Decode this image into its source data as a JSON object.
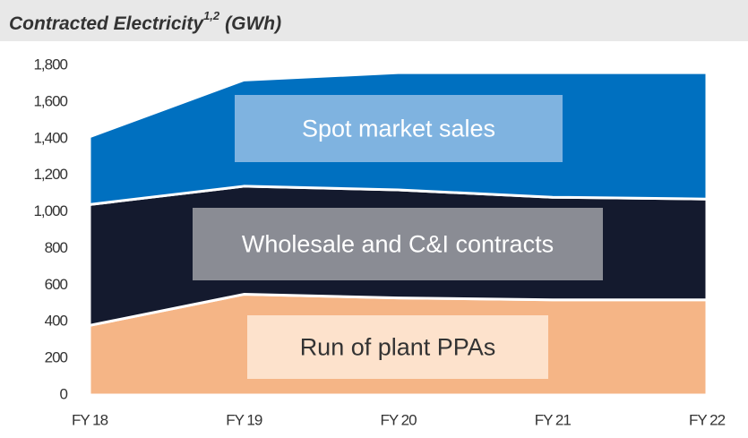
{
  "chart_data": {
    "type": "stacked_area",
    "title": "Contracted Electricity",
    "title_superscript": "1,2",
    "title_suffix": "(GWh)",
    "categories": [
      "FY 18",
      "FY 19",
      "FY 20",
      "FY 21",
      "FY 22"
    ],
    "series": [
      {
        "name": "Run of plant PPAs",
        "color": "#f5b586",
        "label_box": "#fde2cc",
        "label_color": "#333333",
        "values": [
          380,
          550,
          530,
          520,
          520
        ]
      },
      {
        "name": "Wholesale and C&I contracts",
        "color": "#141a2e",
        "label_box": "#8a8c94",
        "label_color": "#ffffff",
        "values": [
          660,
          590,
          590,
          560,
          550
        ]
      },
      {
        "name": "Spot market sales",
        "color": "#0070c0",
        "label_box": "#7fb3e0",
        "label_color": "#ffffff",
        "values": [
          370,
          580,
          640,
          680,
          690
        ]
      }
    ],
    "ylim": [
      0,
      1800
    ],
    "yticks": [
      0,
      200,
      400,
      600,
      800,
      {
        "value": 1000,
        "label": "1,000"
      },
      {
        "value": 1200,
        "label": "1,200"
      },
      {
        "value": 1400,
        "label": "1,400"
      },
      {
        "value": 1600,
        "label": "1,600"
      },
      {
        "value": 1800,
        "label": "1,800"
      }
    ]
  }
}
